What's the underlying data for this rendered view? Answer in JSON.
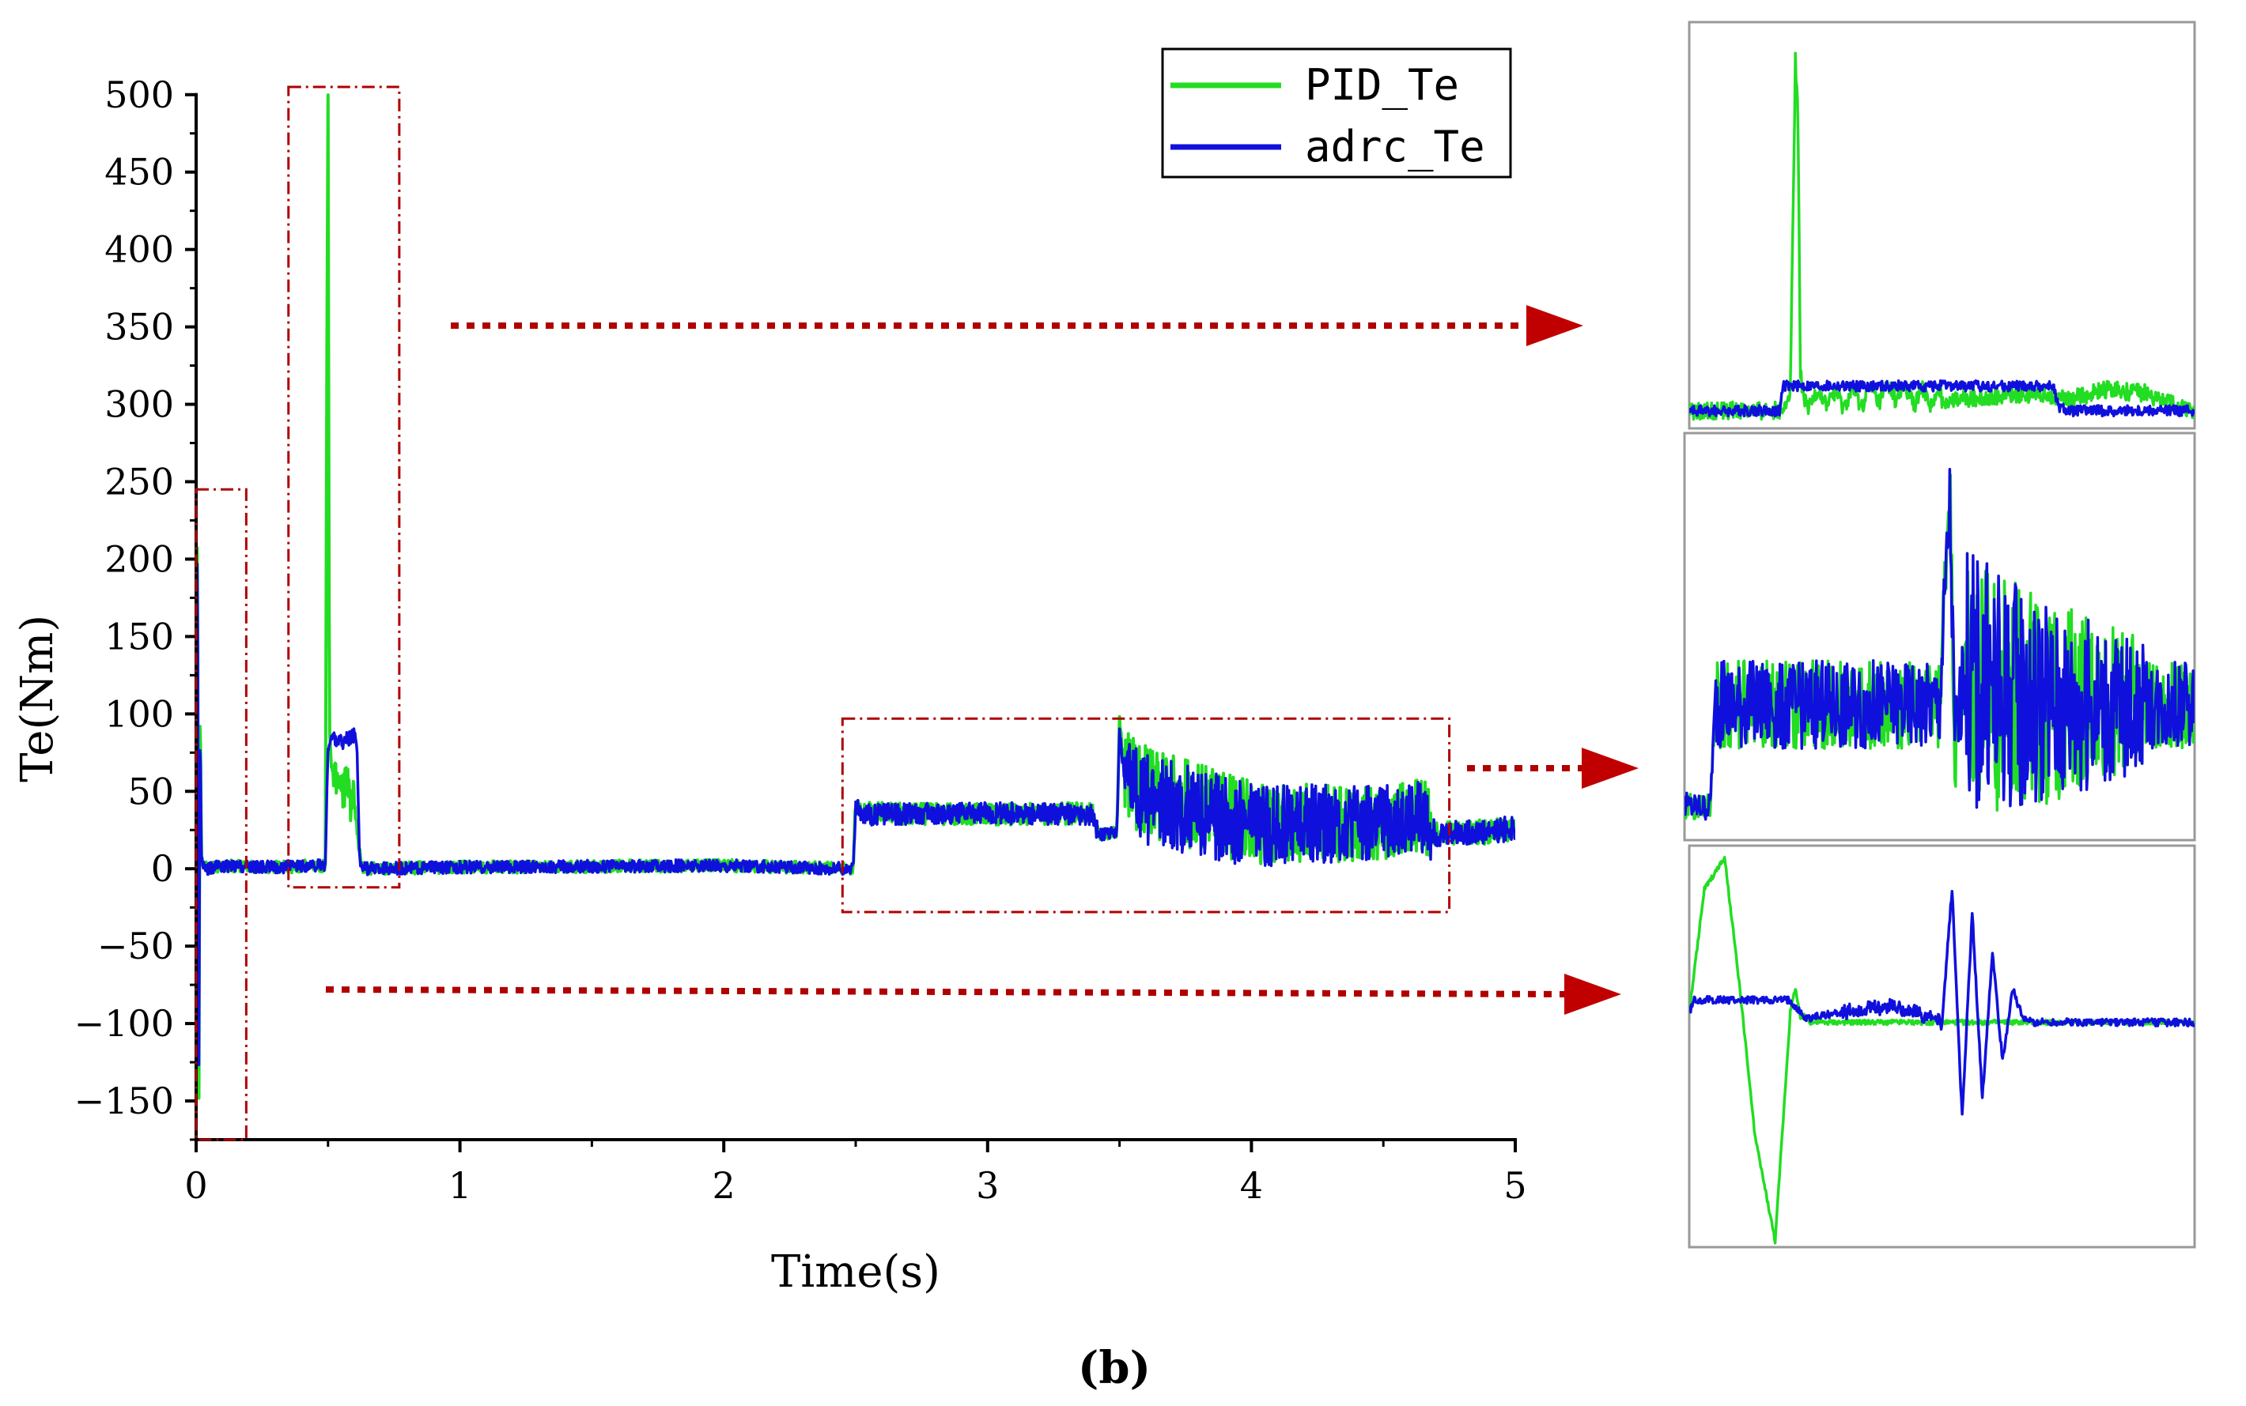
{
  "chart_data": [
    {
      "type": "line",
      "title": "",
      "xlabel": "Time(s)",
      "ylabel": "Te(Nm)",
      "xlim": [
        0,
        5
      ],
      "ylim": [
        -175,
        505
      ],
      "x_ticks": [
        "0",
        "1",
        "2",
        "3",
        "4",
        "5"
      ],
      "y_ticks": [
        "500",
        "450",
        "400",
        "350",
        "300",
        "250",
        "200",
        "150",
        "100",
        "50",
        "0",
        "−50",
        "−100",
        "−150"
      ],
      "legend": {
        "position": "top-right",
        "entries": [
          "PID_Te",
          "adrc_Te"
        ]
      },
      "series": [
        {
          "name": "PID_Te",
          "color": "#22dd22",
          "x": [
            0,
            0.005,
            0.01,
            0.015,
            0.02,
            0.04,
            0.1,
            0.3,
            0.49,
            0.495,
            0.5,
            0.505,
            0.51,
            0.52,
            0.54,
            0.56,
            0.6,
            0.62,
            0.63,
            1.0,
            2.0,
            2.49,
            2.5,
            2.52,
            3.0,
            3.4,
            3.42,
            3.49,
            3.5,
            3.52,
            3.6,
            4.0,
            4.5,
            4.65,
            4.7,
            5.0
          ],
          "values": [
            0,
            250,
            -170,
            120,
            5,
            0,
            2,
            1,
            2,
            300,
            500,
            95,
            70,
            62,
            60,
            55,
            40,
            10,
            0,
            1,
            2,
            0,
            43,
            36,
            35,
            36,
            22,
            24,
            96,
            60,
            50,
            30,
            28,
            35,
            22,
            25
          ]
        },
        {
          "name": "adrc_Te",
          "color": "#1010dd",
          "x": [
            0,
            0.005,
            0.01,
            0.015,
            0.02,
            0.04,
            0.1,
            0.3,
            0.49,
            0.5,
            0.52,
            0.55,
            0.58,
            0.6,
            0.61,
            0.62,
            0.63,
            1.0,
            2.0,
            2.49,
            2.5,
            2.52,
            3.0,
            3.4,
            3.42,
            3.49,
            3.5,
            3.52,
            3.6,
            4.0,
            4.5,
            4.65,
            4.7,
            5.0
          ],
          "values": [
            0,
            235,
            -150,
            100,
            4,
            0,
            2,
            1,
            2,
            80,
            85,
            82,
            84,
            86,
            80,
            5,
            0,
            1,
            2,
            0,
            40,
            35,
            36,
            35,
            22,
            24,
            90,
            55,
            45,
            28,
            30,
            33,
            22,
            26
          ]
        }
      ],
      "highlight_boxes": [
        {
          "x_range": [
            0,
            0.19
          ],
          "y_range": [
            -175,
            245
          ]
        },
        {
          "x_range": [
            0.35,
            0.77
          ],
          "y_range": [
            -12,
            505
          ]
        },
        {
          "x_range": [
            2.45,
            4.75
          ],
          "y_range": [
            -28,
            97
          ]
        }
      ],
      "caption": "(b)"
    },
    {
      "type": "line",
      "title": "",
      "note": "Zoom inset of the 0.35–0.77 s region (no axes shown)",
      "series": [
        {
          "name": "PID_Te",
          "color": "#22dd22",
          "x": [
            0,
            0.18,
            0.2,
            0.21,
            0.215,
            0.22,
            0.23,
            0.26,
            0.3,
            0.4,
            0.5,
            0.6,
            0.7,
            0.75,
            0.82,
            0.9,
            1.0
          ],
          "values": [
            0,
            0,
            5,
            100,
            85,
            10,
            2,
            4,
            3,
            5,
            3,
            4,
            5,
            3,
            6,
            5,
            0
          ]
        },
        {
          "name": "adrc_Te",
          "color": "#1010dd",
          "x": [
            0,
            0.18,
            0.185,
            0.2,
            0.4,
            0.6,
            0.72,
            0.73,
            0.75,
            1.0
          ],
          "values": [
            0,
            0,
            7,
            7,
            7,
            7,
            7,
            1,
            0,
            0
          ]
        }
      ]
    },
    {
      "type": "line",
      "title": "",
      "note": "Zoom inset of the 2.45–4.75 s region (no axes shown)",
      "series": [
        {
          "name": "PID_Te",
          "color": "#22dd22",
          "x": [
            0,
            0.05,
            0.06,
            0.3,
            0.5,
            0.52,
            0.53,
            0.55,
            0.6,
            0.7,
            0.8,
            0.9,
            1.0
          ],
          "values": [
            0,
            0,
            30,
            30,
            30,
            100,
            15,
            40,
            35,
            30,
            32,
            30,
            30
          ]
        },
        {
          "name": "adrc_Te",
          "color": "#1010dd",
          "x": [
            0,
            0.05,
            0.06,
            0.3,
            0.5,
            0.52,
            0.53,
            0.55,
            0.6,
            0.7,
            0.8,
            0.9,
            1.0
          ],
          "values": [
            0,
            0,
            30,
            30,
            30,
            90,
            20,
            40,
            35,
            30,
            30,
            30,
            30
          ]
        }
      ]
    },
    {
      "type": "line",
      "title": "",
      "note": "Zoom inset of the 0–0.19 s region (no axes shown)",
      "series": [
        {
          "name": "PID_Te",
          "color": "#22dd22",
          "x": [
            0,
            0.03,
            0.07,
            0.1,
            0.13,
            0.17,
            0.2,
            0.21,
            0.22,
            0.23,
            0.24,
            0.3,
            0.6,
            1.0
          ],
          "values": [
            0,
            100,
            125,
            20,
            -100,
            -185,
            0,
            20,
            -5,
            -2,
            -8,
            -8,
            -8,
            -8
          ]
        },
        {
          "name": "adrc_Te",
          "color": "#1010dd",
          "x": [
            0,
            0.01,
            0.2,
            0.23,
            0.3,
            0.4,
            0.45,
            0.5,
            0.52,
            0.54,
            0.56,
            0.58,
            0.6,
            0.62,
            0.64,
            0.66,
            0.68,
            0.7,
            0.75,
            0.8,
            1.0
          ],
          "values": [
            0,
            10,
            10,
            -5,
            0,
            5,
            0,
            -8,
            100,
            -85,
            80,
            -70,
            50,
            -40,
            20,
            -5,
            -8,
            -8,
            -8,
            -8,
            -8
          ]
        }
      ]
    }
  ]
}
